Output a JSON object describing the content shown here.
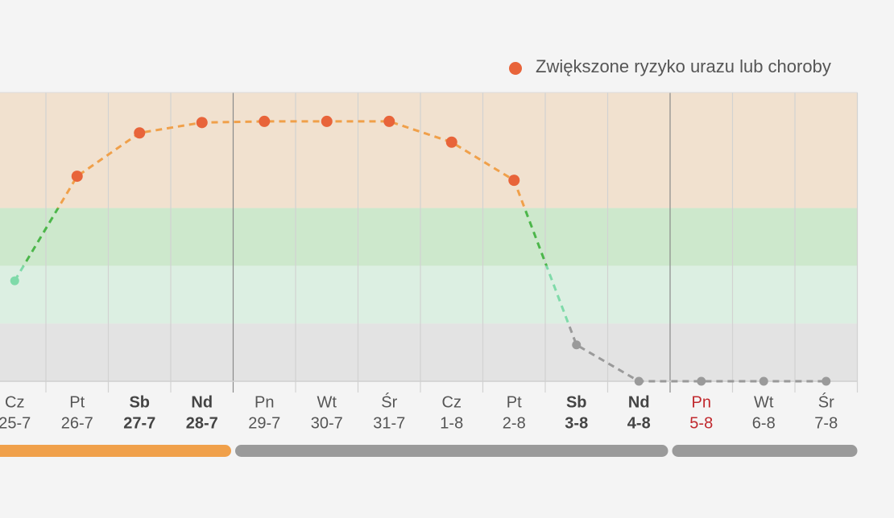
{
  "chart_data": {
    "type": "line",
    "weekdays": [
      "Cz",
      "Pt",
      "Sb",
      "Nd",
      "Pn",
      "Wt",
      "Śr",
      "Cz",
      "Pt",
      "Sb",
      "Nd",
      "Pn",
      "Wt",
      "Śr"
    ],
    "categories": [
      "25-7",
      "26-7",
      "27-7",
      "28-7",
      "29-7",
      "30-7",
      "31-7",
      "1-8",
      "2-8",
      "3-8",
      "4-8",
      "5-8",
      "6-8",
      "7-8"
    ],
    "label_styles": [
      "normal",
      "normal",
      "bold",
      "bold",
      "normal",
      "normal",
      "normal",
      "normal",
      "normal",
      "bold",
      "bold",
      "red",
      "normal",
      "normal"
    ],
    "series": [
      {
        "name": "Zwiększone ryzyko urazu lub choroby",
        "color": "#e8643a",
        "values": [
          1.74,
          3.55,
          4.3,
          4.48,
          4.5,
          4.5,
          4.5,
          4.14,
          3.48,
          0.63,
          0,
          0,
          0,
          0
        ]
      }
    ],
    "ylim": [
      0,
      5
    ],
    "bands": [
      {
        "from": 0,
        "to": 1,
        "color": "#e3e3e3",
        "line_color": "#9a9a9a",
        "marker_color": "#9a9a9a"
      },
      {
        "from": 1,
        "to": 2,
        "color": "#dcefe2",
        "line_color": "#7fdaa9",
        "marker_color": "#7fdaa9"
      },
      {
        "from": 2,
        "to": 3,
        "color": "#cde8cc",
        "line_color": "#4cb64a",
        "marker_color": "#4cb64a"
      },
      {
        "from": 3,
        "to": 5,
        "color": "#f1e1cf",
        "line_color": "#f0a04a",
        "marker_color": "#e8643a"
      }
    ],
    "week_breaks": [
      3,
      10
    ],
    "week_colors": [
      "#f0a04a",
      "#9a9a9a",
      "#9a9a9a"
    ]
  }
}
